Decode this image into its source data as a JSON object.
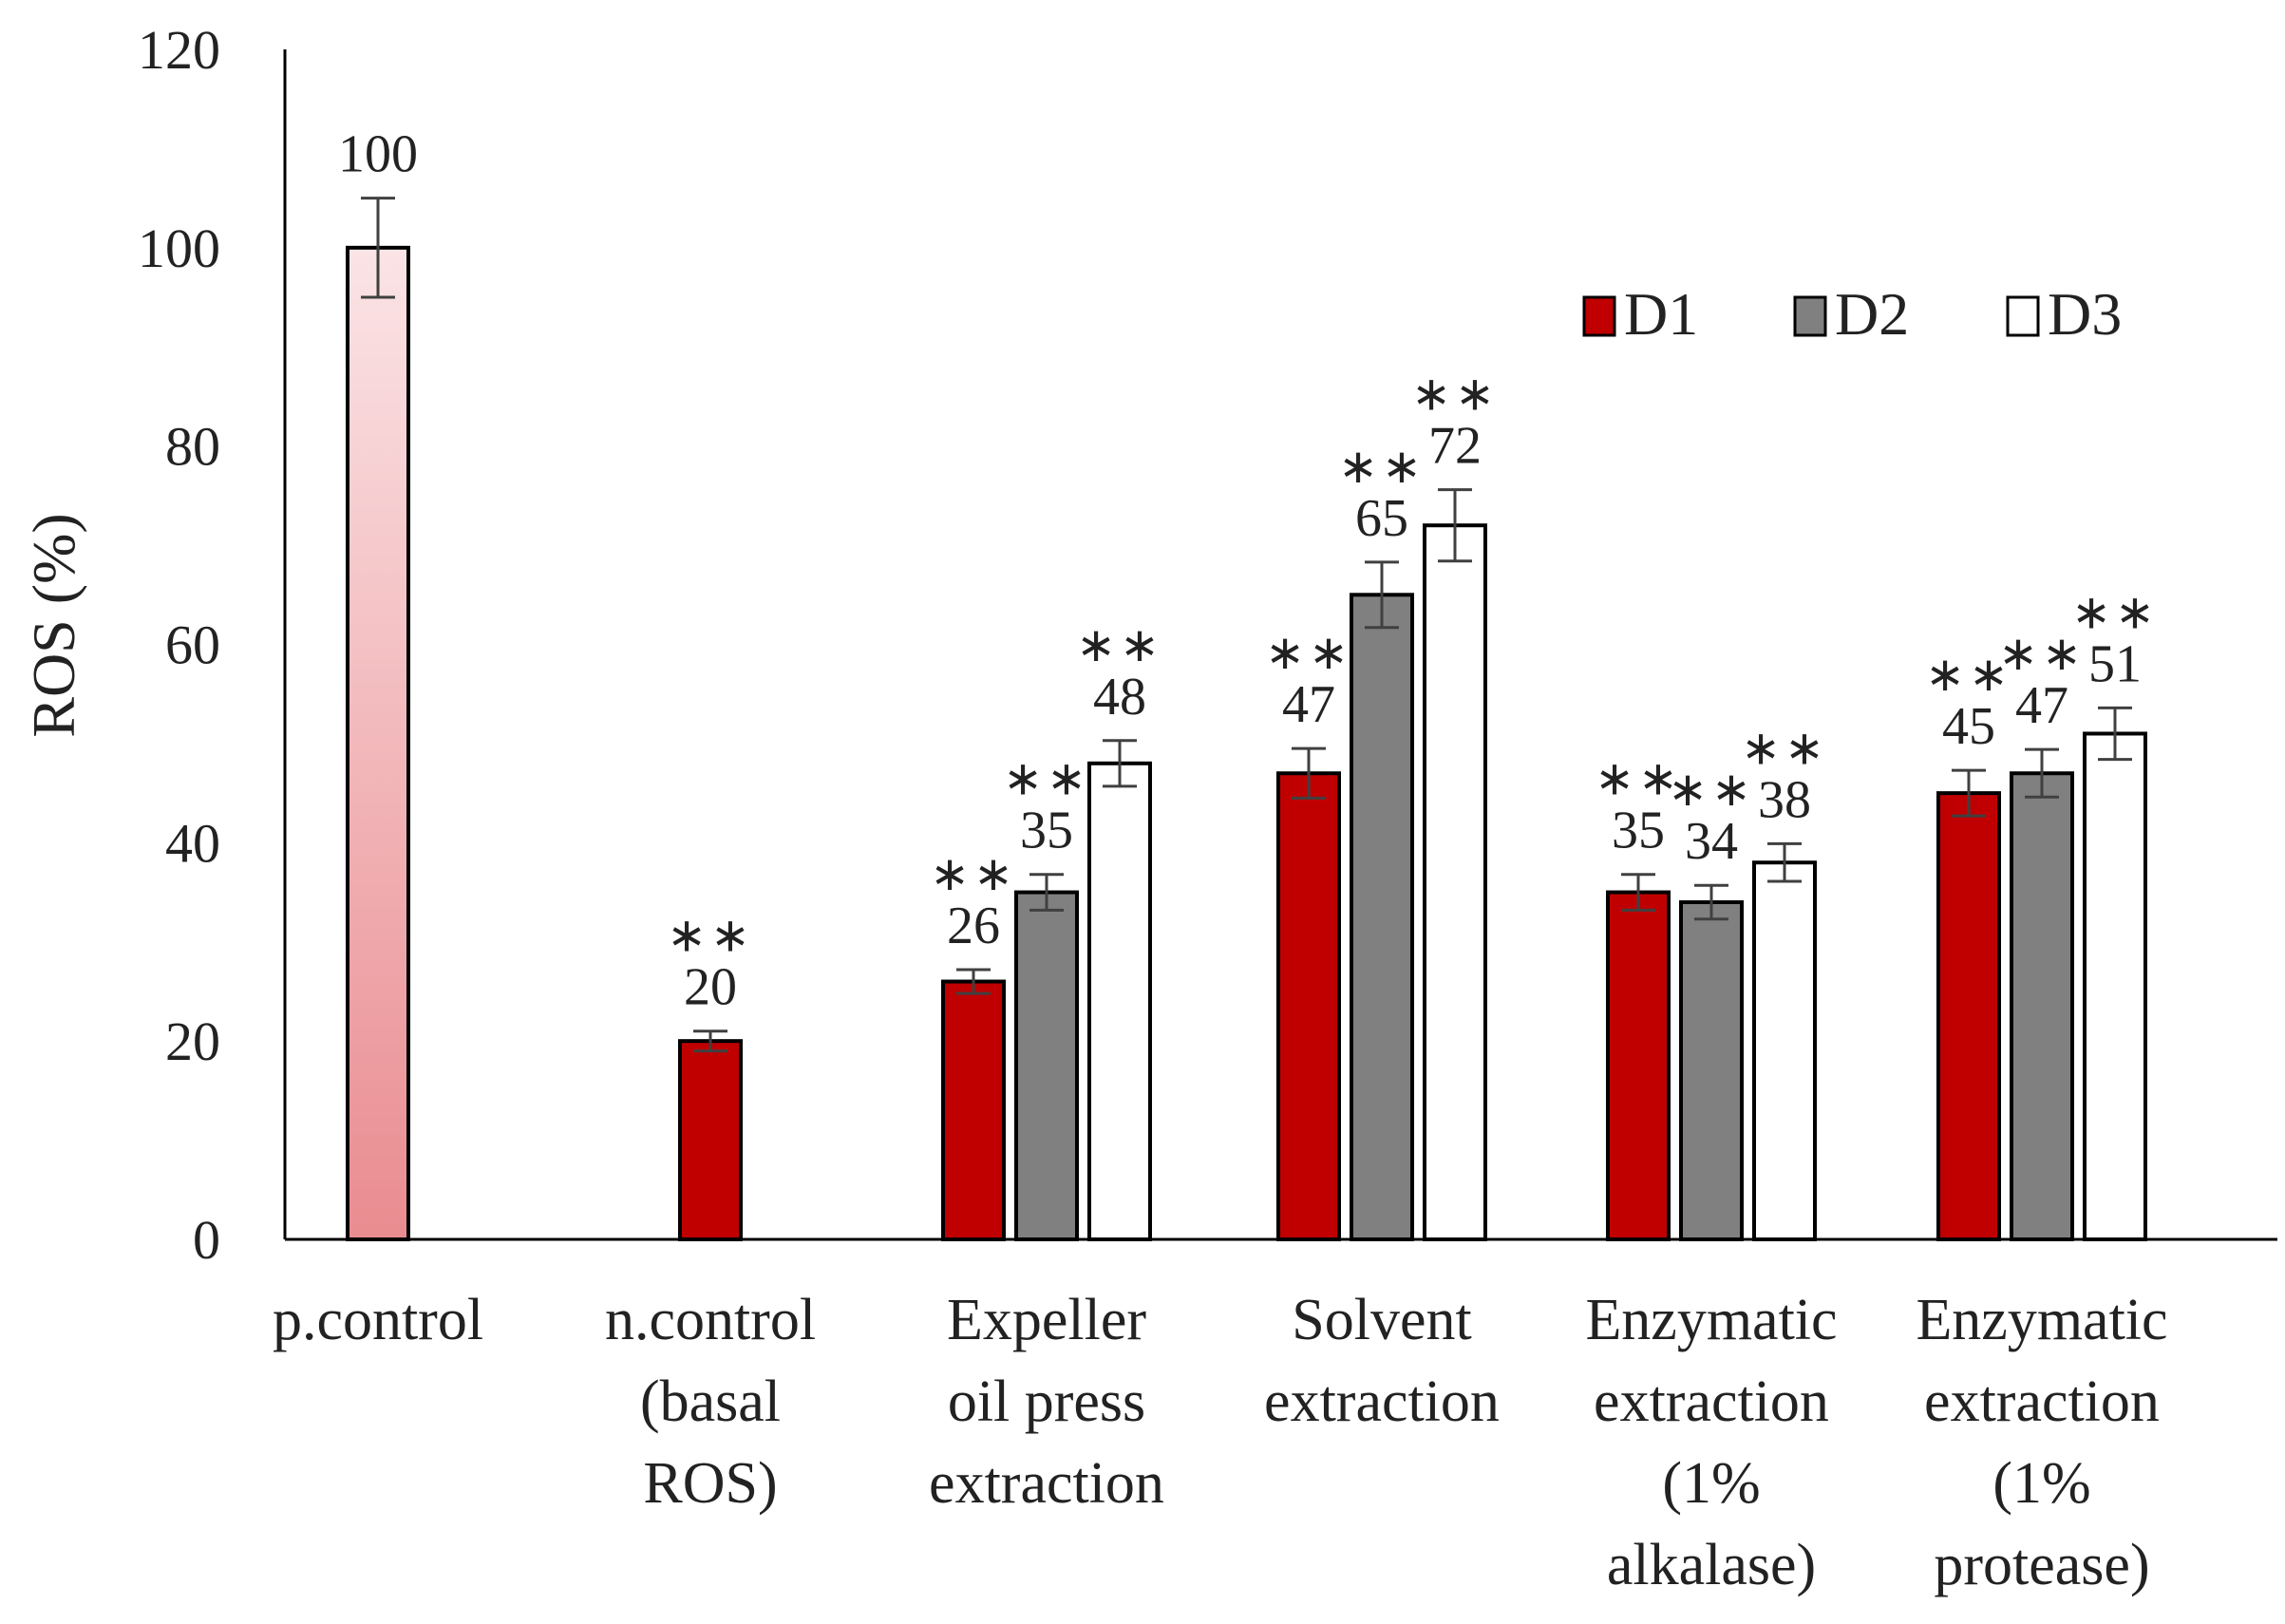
{
  "chart_data": {
    "type": "bar",
    "title": "",
    "xlabel": "",
    "ylabel": "ROS (%)",
    "ylim": [
      0,
      120
    ],
    "yticks": [
      0,
      20,
      40,
      60,
      80,
      100,
      120
    ],
    "grid": false,
    "legend_position": "top-right",
    "categories": [
      {
        "lines": [
          "p.control"
        ]
      },
      {
        "lines": [
          "n.control",
          "(basal",
          "ROS)"
        ]
      },
      {
        "lines": [
          "Expeller",
          "oil press",
          "extraction"
        ]
      },
      {
        "lines": [
          "Solvent",
          "extraction"
        ]
      },
      {
        "lines": [
          "Enzymatic",
          "extraction",
          "(1%",
          "alkalase)"
        ]
      },
      {
        "lines": [
          "Enzymatic",
          "extraction",
          "(1%",
          "protease)"
        ]
      }
    ],
    "legend": [
      {
        "name": "D1",
        "color": "#c00000"
      },
      {
        "name": "D2",
        "color": "#808080"
      },
      {
        "name": "D3",
        "color": "#ffffff"
      }
    ],
    "bars": [
      {
        "category": 0,
        "series": "p.control",
        "value": 100,
        "error": 5,
        "label": "100",
        "sig": "",
        "fill": "gradient"
      },
      {
        "category": 1,
        "series": "D1",
        "value": 20,
        "error": 1,
        "label": "20",
        "sig": "**"
      },
      {
        "category": 2,
        "series": "D1",
        "value": 26,
        "error": 1.2,
        "label": "26",
        "sig": "**"
      },
      {
        "category": 2,
        "series": "D2",
        "value": 35,
        "error": 1.8,
        "label": "35",
        "sig": "**"
      },
      {
        "category": 2,
        "series": "D3",
        "value": 48,
        "error": 2.3,
        "label": "48",
        "sig": "**"
      },
      {
        "category": 3,
        "series": "D1",
        "value": 47,
        "error": 2.5,
        "label": "47",
        "sig": "**"
      },
      {
        "category": 3,
        "series": "D2",
        "value": 65,
        "error": 3.3,
        "label": "65",
        "sig": "**"
      },
      {
        "category": 3,
        "series": "D3",
        "value": 72,
        "error": 3.6,
        "label": "72",
        "sig": "**"
      },
      {
        "category": 4,
        "series": "D1",
        "value": 35,
        "error": 1.8,
        "label": "35",
        "sig": "**"
      },
      {
        "category": 4,
        "series": "D2",
        "value": 34,
        "error": 1.7,
        "label": "34",
        "sig": "**"
      },
      {
        "category": 4,
        "series": "D3",
        "value": 38,
        "error": 1.9,
        "label": "38",
        "sig": "**"
      },
      {
        "category": 5,
        "series": "D1",
        "value": 45,
        "error": 2.3,
        "label": "45",
        "sig": "**"
      },
      {
        "category": 5,
        "series": "D2",
        "value": 47,
        "error": 2.4,
        "label": "47",
        "sig": "**"
      },
      {
        "category": 5,
        "series": "D3",
        "value": 51,
        "error": 2.6,
        "label": "51",
        "sig": "**"
      }
    ]
  }
}
